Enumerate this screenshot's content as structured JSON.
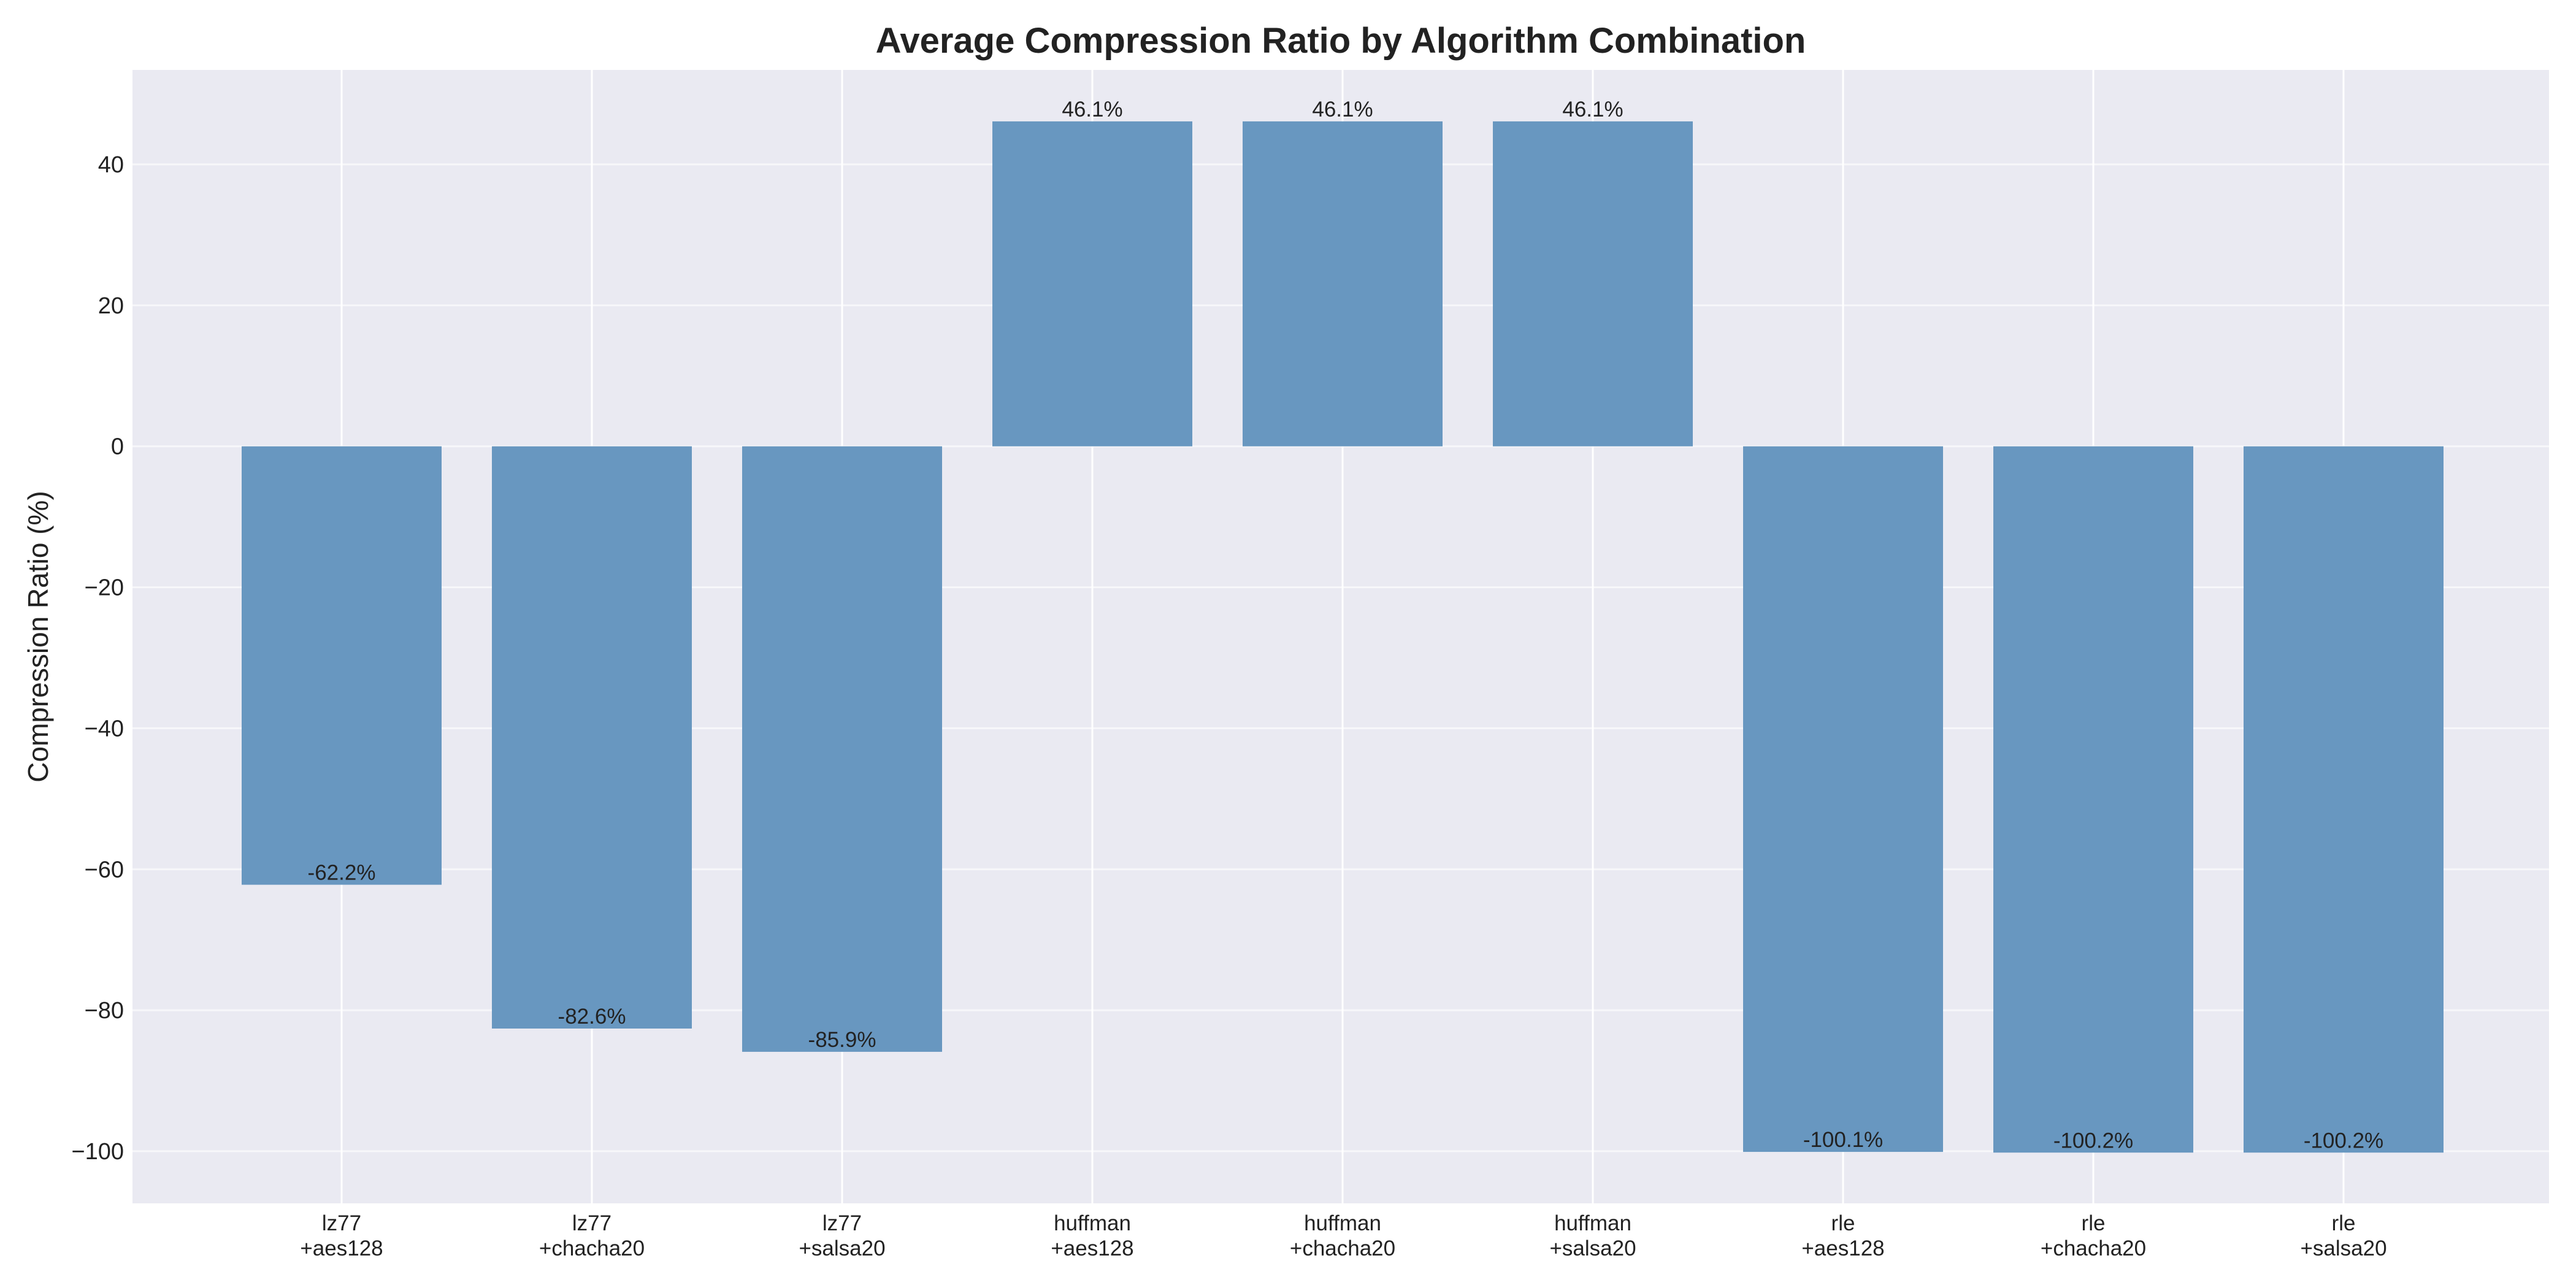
{
  "chart_data": {
    "type": "bar",
    "title": "Average Compression Ratio by Algorithm Combination",
    "xlabel": "",
    "ylabel": "Compression Ratio (%)",
    "categories": [
      [
        "lz77",
        "+aes128"
      ],
      [
        "lz77",
        "+chacha20"
      ],
      [
        "lz77",
        "+salsa20"
      ],
      [
        "huffman",
        "+aes128"
      ],
      [
        "huffman",
        "+chacha20"
      ],
      [
        "huffman",
        "+salsa20"
      ],
      [
        "rle",
        "+aes128"
      ],
      [
        "rle",
        "+chacha20"
      ],
      [
        "rle",
        "+salsa20"
      ]
    ],
    "values": [
      -62.2,
      -82.6,
      -85.9,
      46.1,
      46.1,
      46.1,
      -100.1,
      -100.2,
      -100.2
    ],
    "data_labels": [
      "-62.2%",
      "-82.6%",
      "-85.9%",
      "46.1%",
      "46.1%",
      "46.1%",
      "-100.1%",
      "-100.2%",
      "-100.2%"
    ],
    "yticks": [
      40,
      20,
      0,
      -20,
      -40,
      -60,
      -80,
      -100
    ],
    "ytick_labels": [
      "40",
      "20",
      "0",
      "−20",
      "−40",
      "−60",
      "−80",
      "−100"
    ],
    "ylim": [
      -107.4,
      53.4
    ],
    "grid": true,
    "colors": {
      "bar": "#6897c0",
      "plot_background": "#eaeaf2",
      "grid": "#ffffff"
    }
  }
}
